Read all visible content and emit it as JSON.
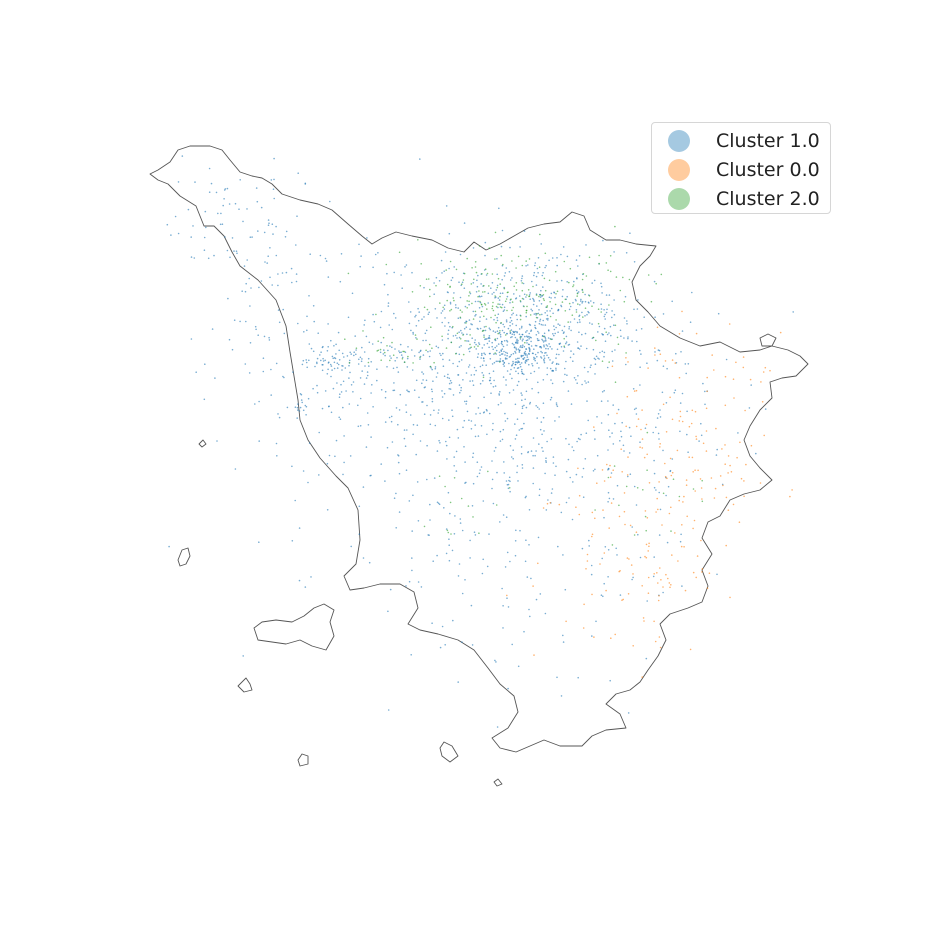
{
  "chart_data": {
    "type": "scatter",
    "title": "",
    "xlabel": "",
    "ylabel": "",
    "axes_visible": false,
    "legend_position": "top-right",
    "series": [
      {
        "name": "Cluster 1.0",
        "color": "#1f77b4"
      },
      {
        "name": "Cluster 0.0",
        "color": "#ff7f0e"
      },
      {
        "name": "Cluster 2.0",
        "color": "#2ca02c"
      }
    ]
  },
  "legend": {
    "items": [
      {
        "label": "Cluster 1.0",
        "color": "#1f77b4"
      },
      {
        "label": "Cluster 0.0",
        "color": "#ff7f0e"
      },
      {
        "label": "Cluster 2.0",
        "color": "#2ca02c"
      }
    ]
  },
  "colors": {
    "outline": "#555555",
    "background": "#ffffff"
  }
}
